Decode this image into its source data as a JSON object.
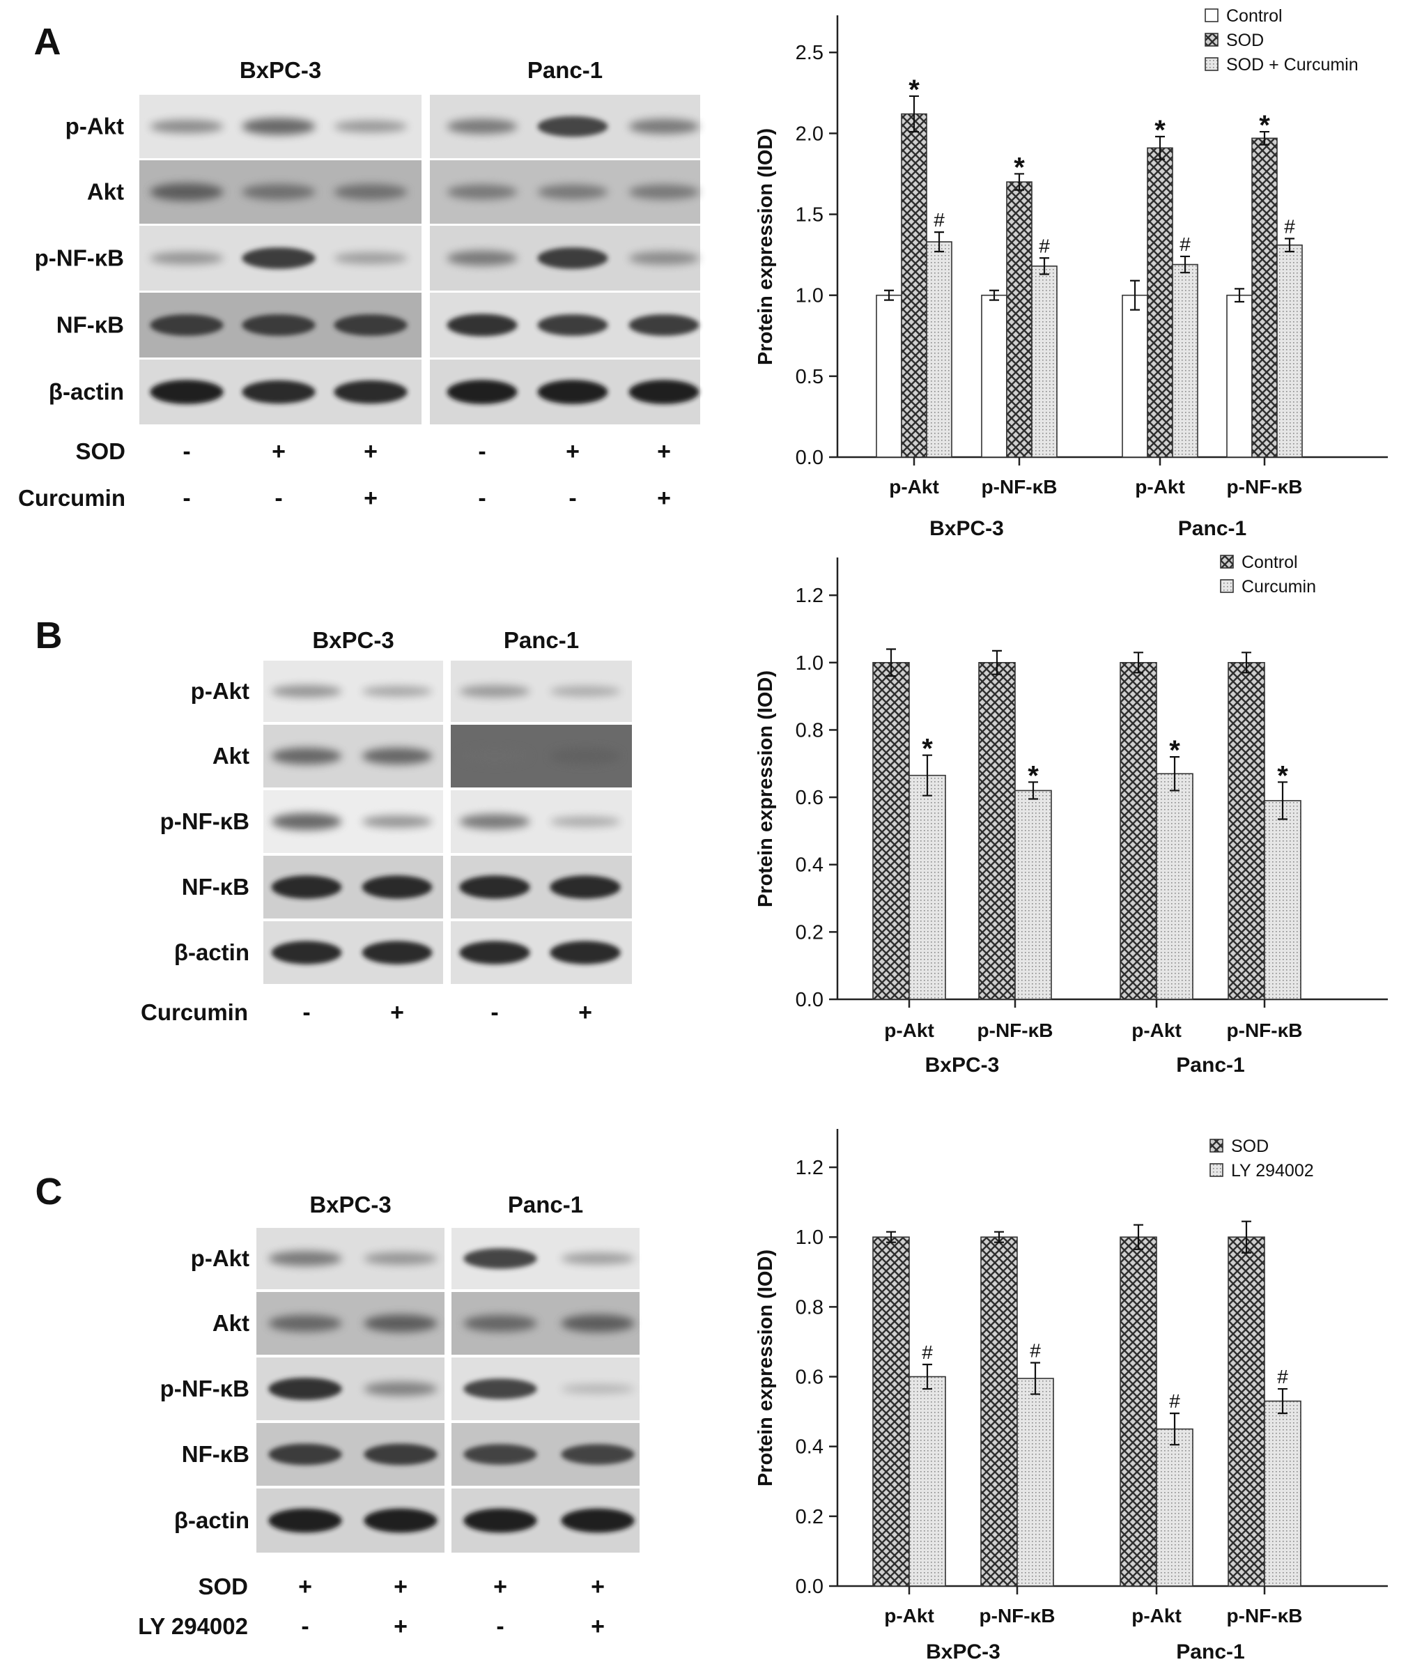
{
  "panels": [
    {
      "letter": "A",
      "blot": {
        "cell_lines": [
          "BxPC-3",
          "Panc-1"
        ],
        "rows": [
          "p-Akt",
          "Akt",
          "p-NF-κB",
          "NF-κB",
          "β-actin"
        ],
        "treatments": [
          {
            "name": "SOD",
            "signs": [
              "-",
              "+",
              "+",
              "-",
              "+",
              "+"
            ]
          },
          {
            "name": "Curcumin",
            "signs": [
              "-",
              "-",
              "+",
              "-",
              "-",
              "+"
            ]
          }
        ]
      }
    },
    {
      "letter": "B",
      "blot": {
        "cell_lines": [
          "BxPC-3",
          "Panc-1"
        ],
        "rows": [
          "p-Akt",
          "Akt",
          "p-NF-κB",
          "NF-κB",
          "β-actin"
        ],
        "treatments": [
          {
            "name": "Curcumin",
            "signs": [
              "-",
              "+",
              "-",
              "+"
            ]
          }
        ]
      }
    },
    {
      "letter": "C",
      "blot": {
        "cell_lines": [
          "BxPC-3",
          "Panc-1"
        ],
        "rows": [
          "p-Akt",
          "Akt",
          "p-NF-κB",
          "NF-κB",
          "β-actin"
        ],
        "treatments": [
          {
            "name": "SOD",
            "signs": [
              "+",
              "+",
              "+",
              "+"
            ]
          },
          {
            "name": "LY 294002",
            "signs": [
              "-",
              "+",
              "-",
              "+"
            ]
          }
        ]
      }
    }
  ],
  "chart_data": [
    {
      "type": "bar",
      "panel": "A",
      "ylabel": "Protein expression (IOD)",
      "ylim": [
        0,
        2.6
      ],
      "yticks": [
        0.0,
        0.5,
        1.0,
        1.5,
        2.0,
        2.5
      ],
      "ytick_labels": [
        "0.0",
        "0.5",
        "1.0",
        "1.5",
        "2.0",
        "2.5"
      ],
      "categories": [
        "p-Akt",
        "p-NF-κB",
        "p-Akt",
        "p-NF-κB"
      ],
      "groups": [
        {
          "label": "BxPC-3",
          "categories": [
            0,
            1
          ]
        },
        {
          "label": "Panc-1",
          "categories": [
            2,
            3
          ]
        }
      ],
      "legend_position": "top-right",
      "series": [
        {
          "name": "Control",
          "fill": "white",
          "values": [
            1.0,
            1.0,
            1.0,
            1.0
          ],
          "errors": [
            0.03,
            0.03,
            0.09,
            0.04
          ],
          "marks": [
            "",
            "",
            "",
            ""
          ]
        },
        {
          "name": "SOD",
          "fill": "cross",
          "values": [
            2.12,
            1.7,
            1.91,
            1.97
          ],
          "errors": [
            0.11,
            0.05,
            0.07,
            0.04
          ],
          "marks": [
            "*",
            "*",
            "*",
            "*"
          ]
        },
        {
          "name": "SOD + Curcumin",
          "fill": "dots",
          "values": [
            1.33,
            1.18,
            1.19,
            1.31
          ],
          "errors": [
            0.06,
            0.05,
            0.05,
            0.04
          ],
          "marks": [
            "#",
            "#",
            "#",
            "#"
          ]
        }
      ]
    },
    {
      "type": "bar",
      "panel": "B",
      "ylabel": "Protein expression (IOD)",
      "ylim": [
        0,
        1.25
      ],
      "yticks": [
        0.0,
        0.2,
        0.4,
        0.6,
        0.8,
        1.0,
        1.2
      ],
      "ytick_labels": [
        "0.0",
        "0.2",
        "0.4",
        "0.6",
        "0.8",
        "1.0",
        "1.2"
      ],
      "categories": [
        "p-Akt",
        "p-NF-κB",
        "p-Akt",
        "p-NF-κB"
      ],
      "groups": [
        {
          "label": "BxPC-3",
          "categories": [
            0,
            1
          ]
        },
        {
          "label": "Panc-1",
          "categories": [
            2,
            3
          ]
        }
      ],
      "legend_position": "top-right",
      "series": [
        {
          "name": "Control",
          "fill": "cross",
          "values": [
            1.0,
            1.0,
            1.0,
            1.0
          ],
          "errors": [
            0.04,
            0.035,
            0.03,
            0.03
          ],
          "marks": [
            "",
            "",
            "",
            ""
          ]
        },
        {
          "name": "Curcumin",
          "fill": "dots",
          "values": [
            0.665,
            0.62,
            0.67,
            0.59
          ],
          "errors": [
            0.06,
            0.025,
            0.05,
            0.055
          ],
          "marks": [
            "*",
            "*",
            "*",
            "*"
          ]
        }
      ]
    },
    {
      "type": "bar",
      "panel": "C",
      "ylabel": "Protein expression (IOD)",
      "ylim": [
        0,
        1.25
      ],
      "yticks": [
        0.0,
        0.2,
        0.4,
        0.6,
        0.8,
        1.0,
        1.2
      ],
      "ytick_labels": [
        "0.0",
        "0.2",
        "0.4",
        "0.6",
        "0.8",
        "1.0",
        "1.2"
      ],
      "categories": [
        "p-Akt",
        "p-NF-κB",
        "p-Akt",
        "p-NF-κB"
      ],
      "groups": [
        {
          "label": "BxPC-3",
          "categories": [
            0,
            1
          ]
        },
        {
          "label": "Panc-1",
          "categories": [
            2,
            3
          ]
        }
      ],
      "legend_position": "top-right",
      "series": [
        {
          "name": "SOD",
          "fill": "cross",
          "values": [
            1.0,
            1.0,
            1.0,
            1.0
          ],
          "errors": [
            0.015,
            0.015,
            0.035,
            0.045
          ],
          "marks": [
            "",
            "",
            "",
            ""
          ]
        },
        {
          "name": "LY 294002",
          "fill": "dots",
          "values": [
            0.6,
            0.595,
            0.45,
            0.53
          ],
          "errors": [
            0.035,
            0.045,
            0.045,
            0.035
          ],
          "marks": [
            "#",
            "#",
            "#",
            "#"
          ]
        }
      ]
    }
  ]
}
